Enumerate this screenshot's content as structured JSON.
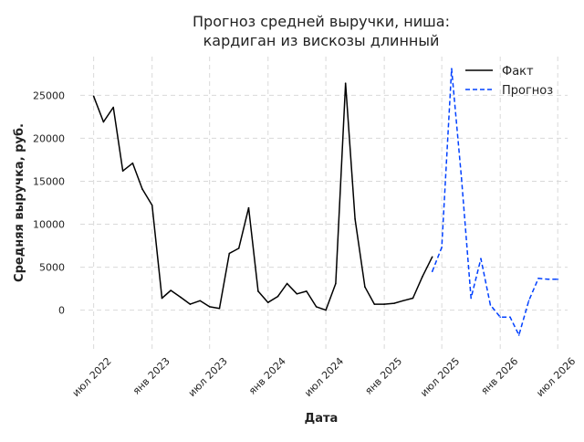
{
  "chart_data": {
    "type": "line",
    "title_line1": "Прогноз средней выручки, ниша:",
    "title_line2": "кардиган из вискозы длинный",
    "xlabel": "Дата",
    "ylabel": "Средняя выручка, руб.",
    "ylim": [
      -4500,
      29500
    ],
    "xlim": [
      "2022-05-20",
      "2026-08-01"
    ],
    "grid": true,
    "legend_position": "top-right",
    "y_ticks": [
      0,
      5000,
      10000,
      15000,
      20000,
      25000
    ],
    "x_ticks": [
      {
        "date": "2022-07-01",
        "label": "июл 2022"
      },
      {
        "date": "2023-01-01",
        "label": "янв 2023"
      },
      {
        "date": "2023-07-01",
        "label": "июл 2023"
      },
      {
        "date": "2024-01-01",
        "label": "янв 2024"
      },
      {
        "date": "2024-07-01",
        "label": "июл 2024"
      },
      {
        "date": "2025-01-01",
        "label": "янв 2025"
      },
      {
        "date": "2025-07-01",
        "label": "июл 2025"
      },
      {
        "date": "2026-01-01",
        "label": "янв 2026"
      },
      {
        "date": "2026-07-01",
        "label": "июл 2026"
      }
    ],
    "series": [
      {
        "name": "Факт",
        "color": "#000000",
        "style": "solid",
        "x": [
          "2022-07-01",
          "2022-08-01",
          "2022-09-01",
          "2022-10-01",
          "2022-11-01",
          "2022-12-01",
          "2023-01-01",
          "2023-02-01",
          "2023-03-01",
          "2023-04-01",
          "2023-05-01",
          "2023-06-01",
          "2023-07-01",
          "2023-08-01",
          "2023-09-01",
          "2023-10-01",
          "2023-11-01",
          "2023-12-01",
          "2024-01-01",
          "2024-02-01",
          "2024-03-01",
          "2024-04-01",
          "2024-05-01",
          "2024-06-01",
          "2024-07-01",
          "2024-08-01",
          "2024-09-01",
          "2024-10-01",
          "2024-11-01",
          "2024-12-01",
          "2025-01-01",
          "2025-02-01",
          "2025-03-01",
          "2025-04-01",
          "2025-05-01",
          "2025-06-01"
        ],
        "y": [
          24900,
          21900,
          23600,
          16200,
          17100,
          14100,
          12200,
          1400,
          2300,
          1500,
          700,
          1100,
          400,
          200,
          6600,
          7200,
          11900,
          2200,
          900,
          1600,
          3100,
          1900,
          2200,
          400,
          0,
          3100,
          26400,
          10600,
          2700,
          700,
          700,
          800,
          1100,
          1400,
          3900,
          6200
        ]
      },
      {
        "name": "Прогноз",
        "color": "#0040ff",
        "style": "dashed",
        "x": [
          "2025-06-01",
          "2025-07-01",
          "2025-08-01",
          "2025-09-01",
          "2025-10-01",
          "2025-11-01",
          "2025-12-01",
          "2026-01-01",
          "2026-02-01",
          "2026-03-01",
          "2026-04-01",
          "2026-05-01",
          "2026-06-01",
          "2026-07-01"
        ],
        "y": [
          4500,
          7300,
          28100,
          15400,
          1400,
          6000,
          600,
          -800,
          -800,
          -2900,
          1100,
          3700,
          3600,
          3600
        ]
      }
    ]
  }
}
